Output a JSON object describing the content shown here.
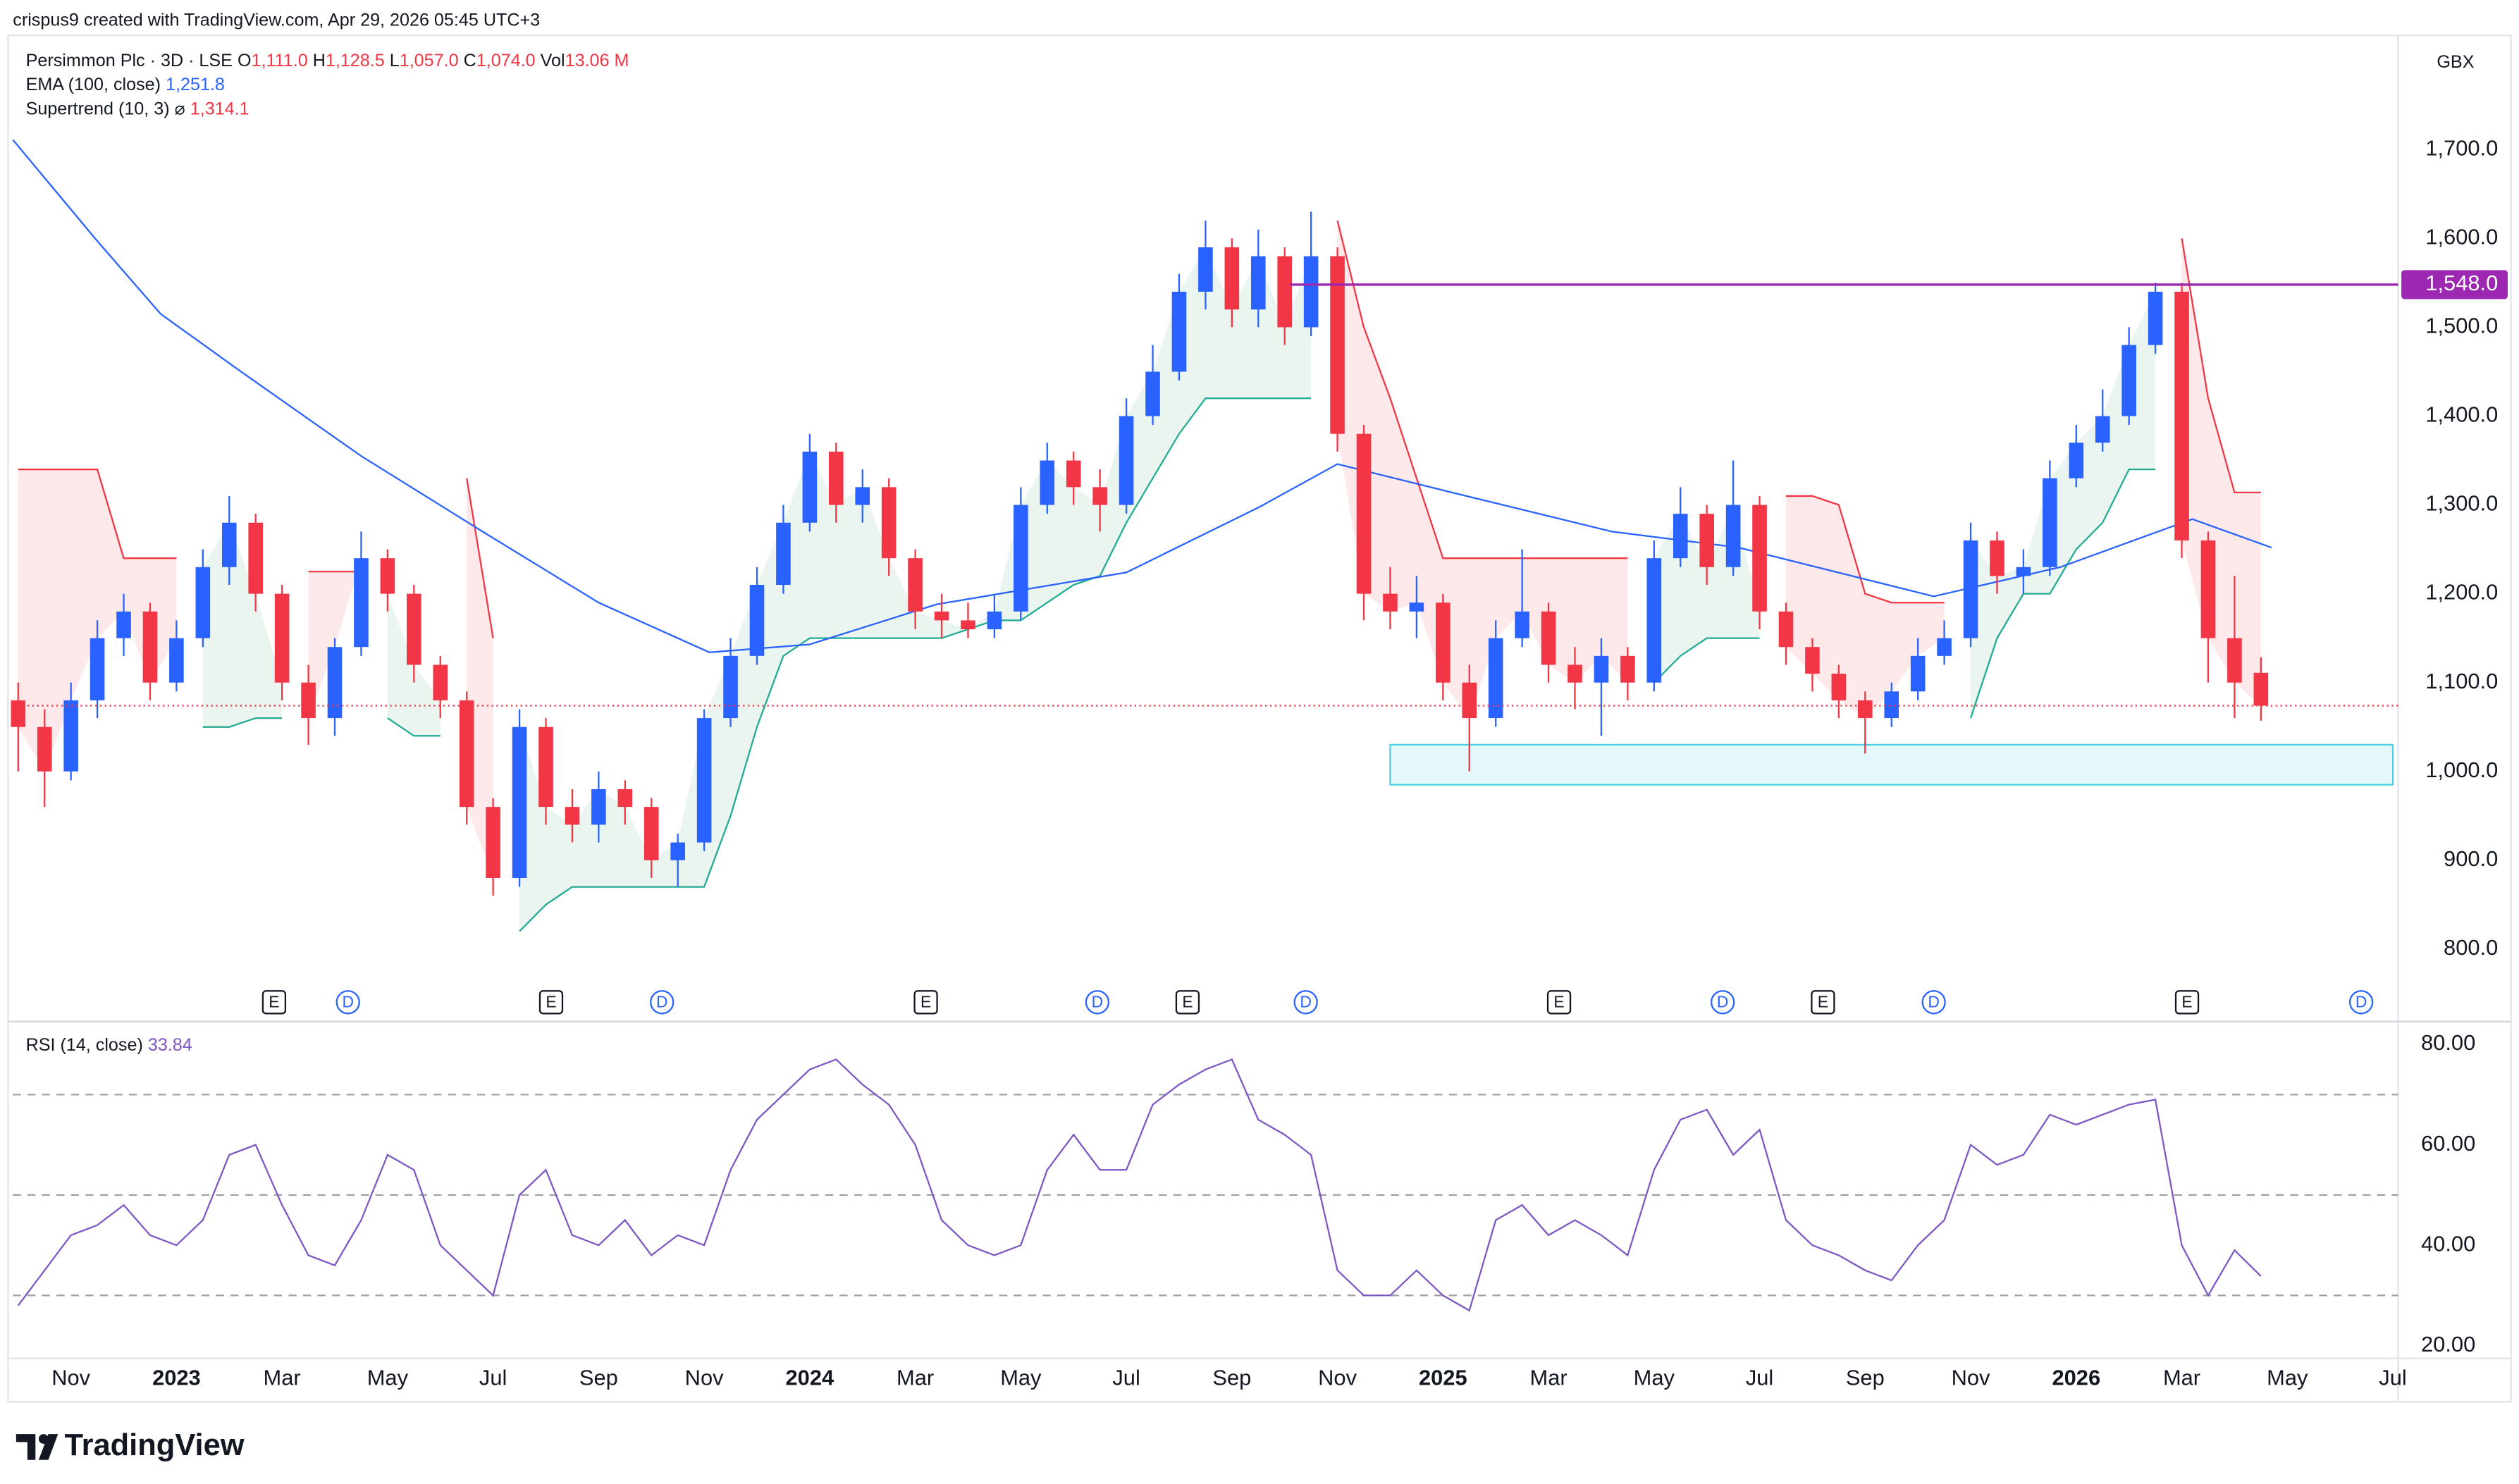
{
  "credit": "crispus9 created with TradingView.com, Apr 29, 2026 05:45 UTC+3",
  "symbol": "Persimmon Plc · 3D · LSE",
  "legend": [
    {
      "label": "O",
      "value": "1,111.0"
    },
    {
      "label": "H",
      "value": "1,128.5"
    },
    {
      "label": "L",
      "value": "1,057.0"
    },
    {
      "label": "C",
      "value": "1,074.0"
    },
    {
      "label": "Vol",
      "value": "13.06 M"
    }
  ],
  "indicators": [
    {
      "name": "EMA (100, close)",
      "value": "1,251.8"
    },
    {
      "name": "Supertrend (10, 3)",
      "symbol": "⌀",
      "value": "1,314.1"
    }
  ],
  "currency": "GBX",
  "brand": "TradingView",
  "chart_data": [
    {
      "type": "candlestick",
      "xlim": [
        -1.1,
        44.1
      ],
      "ylim": [
        722,
        1814
      ],
      "x": [
        -1,
        -0.5,
        0,
        0.5,
        1,
        1.5,
        2,
        2.5,
        3,
        3.5,
        4,
        4.5,
        5,
        5.5,
        6,
        6.5,
        7,
        7.5,
        8,
        8.5,
        9,
        9.5,
        10,
        10.5,
        11,
        11.5,
        12,
        12.5,
        13,
        13.5,
        14,
        14.5,
        15,
        15.5,
        16,
        16.5,
        17,
        17.5,
        18,
        18.5,
        19,
        19.5,
        20,
        20.5,
        21,
        21.5,
        22,
        22.5,
        23,
        23.5,
        24,
        24.5,
        25,
        25.5,
        26,
        26.5,
        27,
        27.5,
        28,
        28.5,
        29,
        29.5,
        30,
        30.5,
        31,
        31.5,
        32,
        32.5,
        33,
        33.5,
        34,
        34.5,
        35,
        35.5,
        36,
        36.5,
        37,
        37.5,
        38,
        38.5,
        39,
        39.5,
        40,
        40.5,
        41,
        41.5
      ],
      "open": [
        1080,
        1050,
        1000,
        1080,
        1150,
        1180,
        1100,
        1150,
        1230,
        1280,
        1200,
        1100,
        1060,
        1140,
        1240,
        1200,
        1120,
        1080,
        960,
        880,
        1050,
        960,
        940,
        980,
        960,
        900,
        920,
        1060,
        1130,
        1210,
        1280,
        1360,
        1300,
        1320,
        1240,
        1180,
        1170,
        1160,
        1180,
        1300,
        1350,
        1320,
        1300,
        1400,
        1450,
        1540,
        1590,
        1520,
        1580,
        1500,
        1580,
        1380,
        1200,
        1180,
        1190,
        1100,
        1060,
        1150,
        1180,
        1120,
        1100,
        1130,
        1100,
        1240,
        1290,
        1230,
        1300,
        1180,
        1140,
        1110,
        1080,
        1060,
        1090,
        1130,
        1150,
        1260,
        1220,
        1230,
        1330,
        1370,
        1400,
        1480,
        1540,
        1260,
        1150,
        1111
      ],
      "high": [
        1100,
        1070,
        1100,
        1170,
        1200,
        1190,
        1170,
        1250,
        1310,
        1290,
        1210,
        1120,
        1150,
        1270,
        1250,
        1210,
        1130,
        1090,
        970,
        1070,
        1060,
        980,
        1000,
        990,
        970,
        930,
        1070,
        1150,
        1230,
        1300,
        1380,
        1370,
        1340,
        1330,
        1250,
        1200,
        1190,
        1200,
        1320,
        1370,
        1360,
        1340,
        1420,
        1480,
        1560,
        1620,
        1600,
        1610,
        1590,
        1630,
        1590,
        1390,
        1230,
        1220,
        1200,
        1120,
        1170,
        1250,
        1190,
        1140,
        1150,
        1140,
        1260,
        1320,
        1300,
        1350,
        1310,
        1190,
        1150,
        1120,
        1090,
        1100,
        1150,
        1170,
        1280,
        1270,
        1250,
        1350,
        1390,
        1430,
        1500,
        1550,
        1550,
        1270,
        1220,
        1128.5
      ],
      "low": [
        1000,
        960,
        990,
        1060,
        1130,
        1080,
        1090,
        1140,
        1210,
        1180,
        1080,
        1030,
        1040,
        1130,
        1180,
        1100,
        1060,
        940,
        860,
        870,
        940,
        920,
        920,
        940,
        880,
        870,
        910,
        1050,
        1120,
        1200,
        1270,
        1280,
        1280,
        1220,
        1160,
        1150,
        1150,
        1150,
        1170,
        1290,
        1300,
        1270,
        1290,
        1390,
        1440,
        1520,
        1500,
        1500,
        1480,
        1490,
        1360,
        1170,
        1160,
        1150,
        1080,
        1000,
        1050,
        1140,
        1100,
        1070,
        1040,
        1080,
        1090,
        1230,
        1210,
        1220,
        1160,
        1120,
        1090,
        1060,
        1020,
        1050,
        1080,
        1120,
        1140,
        1200,
        1200,
        1220,
        1320,
        1360,
        1390,
        1470,
        1240,
        1100,
        1060,
        1057
      ],
      "close": [
        1050,
        1000,
        1080,
        1150,
        1180,
        1100,
        1150,
        1230,
        1280,
        1200,
        1100,
        1060,
        1140,
        1240,
        1200,
        1120,
        1080,
        960,
        880,
        1050,
        960,
        940,
        980,
        960,
        900,
        920,
        1060,
        1130,
        1210,
        1280,
        1360,
        1300,
        1320,
        1240,
        1180,
        1170,
        1160,
        1180,
        1300,
        1350,
        1320,
        1300,
        1400,
        1450,
        1540,
        1590,
        1520,
        1580,
        1500,
        1580,
        1380,
        1200,
        1180,
        1190,
        1100,
        1060,
        1150,
        1180,
        1120,
        1100,
        1130,
        1100,
        1240,
        1290,
        1230,
        1300,
        1180,
        1140,
        1110,
        1080,
        1060,
        1090,
        1130,
        1150,
        1260,
        1220,
        1230,
        1330,
        1370,
        1400,
        1480,
        1540,
        1260,
        1150,
        1100,
        1074
      ],
      "up_color": "#2962ff",
      "down_color": "#f23645",
      "ema": {
        "color": "#2962ff",
        "x": [
          -1.1,
          0.5,
          1.7,
          3.2,
          5.5,
          7.8,
          10,
          12.1,
          14,
          16.4,
          20,
          22.5,
          24,
          26.1,
          29.2,
          31.6,
          35.3,
          37.7,
          40.2,
          41.7
        ],
        "values": [
          1711,
          1597,
          1515,
          1451,
          1355,
          1270,
          1190,
          1134,
          1143,
          1188,
          1224,
          1297,
          1346,
          1315,
          1270,
          1252,
          1197,
          1230,
          1284,
          1252
        ]
      },
      "supertrend_down": {
        "color": "#f23645",
        "fill": "#fde3e5",
        "values": [
          1340,
          1340,
          1340,
          1340,
          1240,
          1240,
          1240,
          null,
          null,
          null,
          null,
          1225,
          1225,
          1225,
          null,
          null,
          null,
          1330,
          1150,
          null,
          null,
          null,
          null,
          null,
          null,
          null,
          null,
          null,
          null,
          null,
          null,
          null,
          null,
          null,
          null,
          null,
          null,
          null,
          null,
          null,
          null,
          null,
          null,
          null,
          null,
          null,
          null,
          null,
          null,
          null,
          1620,
          1500,
          1420,
          1330,
          1240,
          1240,
          1240,
          1240,
          1240,
          1240,
          1240,
          1240,
          null,
          null,
          null,
          null,
          null,
          1310,
          1310,
          1300,
          1200,
          1190,
          1190,
          1190,
          null,
          null,
          null,
          null,
          null,
          null,
          null,
          null,
          1600,
          1420,
          1314,
          1314
        ]
      },
      "supertrend_up": {
        "color": "#22ab94",
        "fill": "#e3f3ea",
        "values": [
          null,
          null,
          null,
          null,
          null,
          null,
          null,
          1050,
          1050,
          1060,
          1060,
          null,
          null,
          null,
          1060,
          1040,
          1040,
          null,
          null,
          820,
          850,
          870,
          870,
          870,
          870,
          870,
          870,
          950,
          1050,
          1130,
          1150,
          1150,
          1150,
          1150,
          1150,
          1150,
          1160,
          1170,
          1170,
          1190,
          1210,
          1220,
          1280,
          1330,
          1380,
          1420,
          1420,
          1420,
          1420,
          1420,
          null,
          null,
          null,
          null,
          null,
          null,
          null,
          null,
          null,
          null,
          null,
          null,
          1100,
          1130,
          1150,
          1150,
          1150,
          null,
          null,
          null,
          null,
          null,
          null,
          null,
          1060,
          1150,
          1200,
          1200,
          1250,
          1280,
          1340,
          1340,
          null,
          null,
          null,
          null
        ]
      },
      "level": {
        "value": 1548,
        "label": "1,548.0",
        "x0": 23.1,
        "color": "#9c27b0"
      },
      "zone": {
        "x": [
          25,
          44
        ],
        "y": [
          985,
          1030
        ],
        "color": "#4dd0e1"
      },
      "events": [
        {
          "label": "E",
          "x": 3.85
        },
        {
          "label": "D",
          "x": 5.25
        },
        {
          "label": "E",
          "x": 9.1
        },
        {
          "label": "D",
          "x": 11.2
        },
        {
          "label": "E",
          "x": 16.2
        },
        {
          "label": "D",
          "x": 19.45
        },
        {
          "label": "E",
          "x": 21.16
        },
        {
          "label": "D",
          "x": 23.4
        },
        {
          "label": "E",
          "x": 28.2
        },
        {
          "label": "D",
          "x": 31.3
        },
        {
          "label": "E",
          "x": 33.2
        },
        {
          "label": "D",
          "x": 35.3
        },
        {
          "label": "E",
          "x": 40.1
        },
        {
          "label": "D",
          "x": 43.4
        }
      ],
      "yticks": [
        {
          "value": 800,
          "label": "800.0"
        },
        {
          "value": 900,
          "label": "900.0"
        },
        {
          "value": 1000,
          "label": "1,000.0"
        },
        {
          "value": 1100,
          "label": "1,100.0"
        },
        {
          "value": 1200,
          "label": "1,200.0"
        },
        {
          "value": 1300,
          "label": "1,300.0"
        },
        {
          "value": 1400,
          "label": "1,400.0"
        },
        {
          "value": 1500,
          "label": "1,500.0"
        },
        {
          "value": 1600,
          "label": "1,600.0"
        },
        {
          "value": 1700,
          "label": "1,700.0"
        }
      ],
      "xticks": [
        {
          "value": 0,
          "label": "Nov"
        },
        {
          "value": 2,
          "label": "2023"
        },
        {
          "value": 4,
          "label": "Mar"
        },
        {
          "value": 6,
          "label": "May"
        },
        {
          "value": 8,
          "label": "Jul"
        },
        {
          "value": 10,
          "label": "Sep"
        },
        {
          "value": 12,
          "label": "Nov"
        },
        {
          "value": 14,
          "label": "2024"
        },
        {
          "value": 16,
          "label": "Mar"
        },
        {
          "value": 18,
          "label": "May"
        },
        {
          "value": 20,
          "label": "Jul"
        },
        {
          "value": 22,
          "label": "Sep"
        },
        {
          "value": 24,
          "label": "Nov"
        },
        {
          "value": 26,
          "label": "2025"
        },
        {
          "value": 28,
          "label": "Mar"
        },
        {
          "value": 30,
          "label": "May"
        },
        {
          "value": 32,
          "label": "Jul"
        },
        {
          "value": 34,
          "label": "Sep"
        },
        {
          "value": 36,
          "label": "Nov"
        },
        {
          "value": 38,
          "label": "2026"
        },
        {
          "value": 40,
          "label": "Mar"
        },
        {
          "value": 42,
          "label": "May"
        },
        {
          "value": 44,
          "label": "Jul"
        }
      ]
    },
    {
      "type": "line",
      "title": "RSI (14, close)",
      "last": "33.84",
      "color": "#7e57c2",
      "ylim": [
        17.8,
        83.9
      ],
      "yticks": [
        {
          "value": 20,
          "label": "20.00"
        },
        {
          "value": 40,
          "label": "40.00"
        },
        {
          "value": 60,
          "label": "60.00"
        },
        {
          "value": 80,
          "label": "80.00"
        }
      ],
      "bands": [
        70,
        50,
        30
      ],
      "values": [
        28,
        35,
        42,
        44,
        48,
        42,
        40,
        45,
        58,
        60,
        48,
        38,
        36,
        45,
        58,
        55,
        40,
        35,
        30,
        50,
        55,
        42,
        40,
        45,
        38,
        42,
        40,
        55,
        65,
        70,
        75,
        77,
        72,
        68,
        60,
        45,
        40,
        38,
        40,
        55,
        62,
        55,
        55,
        68,
        72,
        75,
        77,
        65,
        62,
        58,
        35,
        30,
        30,
        35,
        30,
        27,
        45,
        48,
        42,
        45,
        42,
        38,
        55,
        65,
        67,
        58,
        63,
        45,
        40,
        38,
        35,
        33,
        40,
        45,
        60,
        56,
        58,
        66,
        64,
        66,
        68,
        69,
        40,
        30,
        39,
        33.84
      ]
    }
  ]
}
